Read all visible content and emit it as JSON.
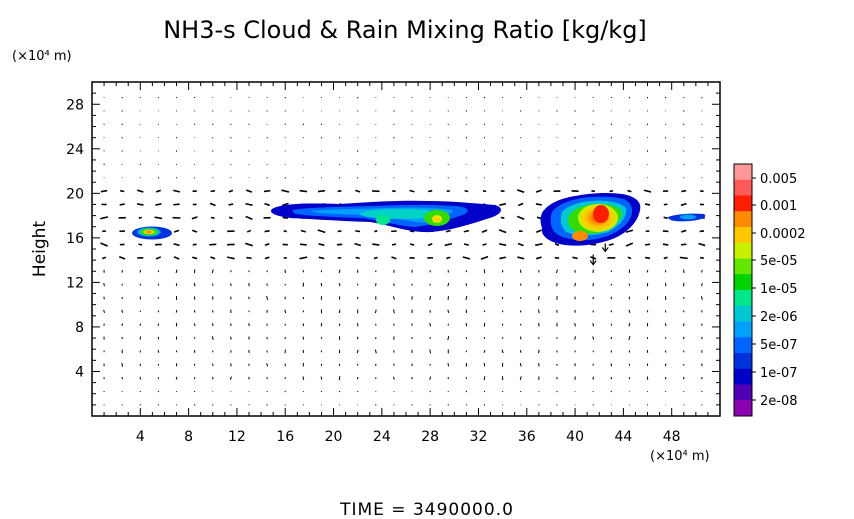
{
  "chart_data": {
    "type": "heatmap",
    "title": "NH3-s Cloud & Rain Mixing Ratio [kg/kg]",
    "ylabel": "Height",
    "x_unit": "(×10⁴ m)",
    "y_unit": "(×10⁴ m)",
    "xlim": [
      0,
      52
    ],
    "ylim": [
      0,
      30
    ],
    "x_ticks": [
      "4",
      "8",
      "12",
      "16",
      "20",
      "24",
      "28",
      "32",
      "36",
      "40",
      "44",
      "48"
    ],
    "x_tick_values": [
      4,
      8,
      12,
      16,
      20,
      24,
      28,
      32,
      36,
      40,
      44,
      48
    ],
    "y_ticks": [
      "4",
      "8",
      "12",
      "16",
      "20",
      "24",
      "28"
    ],
    "y_tick_values": [
      4,
      8,
      12,
      16,
      20,
      24,
      28
    ],
    "colorbar": {
      "labels": [
        "0.005",
        "0.001",
        "0.0002",
        "5e-05",
        "1e-05",
        "2e-06",
        "5e-07",
        "1e-07",
        "2e-08"
      ],
      "colors": [
        "#ff9999",
        "#ff5a5a",
        "#ff1e00",
        "#ff8c00",
        "#ffc800",
        "#c8f000",
        "#64e600",
        "#00d200",
        "#00e68c",
        "#00c8d2",
        "#00a0ff",
        "#0064ff",
        "#0032dc",
        "#0000c8",
        "#5000b4",
        "#8c00b4"
      ]
    },
    "cloud_regions": [
      {
        "x_range": [
          4.0,
          6.5
        ],
        "y_range": [
          15.9,
          17.1
        ],
        "peak_level": "0.0002"
      },
      {
        "x_range": [
          15.5,
          33.5
        ],
        "y_range": [
          16.3,
          19.5
        ],
        "peak_level": "0.0002"
      },
      {
        "x_range": [
          36.0,
          46.0
        ],
        "y_range": [
          15.0,
          20.0
        ],
        "peak_level": "0.001"
      },
      {
        "x_range": [
          47.5,
          50.0
        ],
        "y_range": [
          17.6,
          18.3
        ],
        "peak_level": "5e-07"
      }
    ],
    "overlay": "wind vectors",
    "grid": false,
    "legend": "right"
  },
  "footer": {
    "time_label": "TIME",
    "time_value": "3490000.0"
  }
}
